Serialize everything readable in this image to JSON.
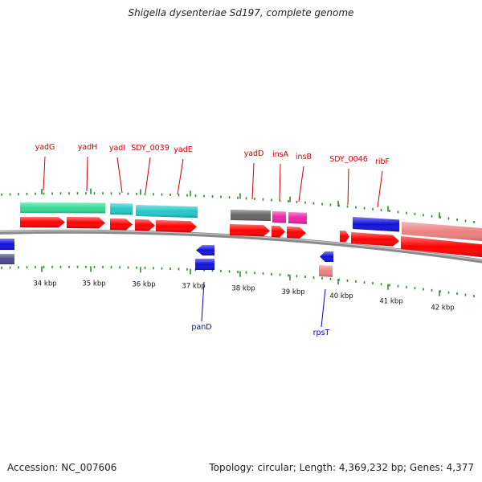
{
  "title": "Shigella dysenteriae Sd197, complete genome",
  "footer": {
    "accession": "Accession: NC_007606",
    "summary": "Topology: circular; Length: 4,369,232 bp; Genes: 4,377"
  },
  "colors": {
    "label_red": "#cc0000",
    "label_blue": "#0000cc",
    "backbone": "#8a8a8a",
    "tick": "#2e8b2e",
    "cds_red": "#ff0000",
    "green": "#33dd99",
    "cyan": "#22c8c8",
    "gray": "#666666",
    "magenta": "#ee22aa",
    "blue": "#1010dd",
    "salmon": "#ee8080",
    "navy": "#4a4a88"
  },
  "scale": {
    "unit": "kbp",
    "ticks": [
      {
        "label": "34 kbp"
      },
      {
        "label": "35 kbp"
      },
      {
        "label": "36 kbp"
      },
      {
        "label": "37 kbp"
      },
      {
        "label": "38 kbp"
      },
      {
        "label": "39 kbp"
      },
      {
        "label": "40 kbp"
      },
      {
        "label": "41 kbp"
      },
      {
        "label": "42 kbp"
      }
    ]
  },
  "genes_forward": [
    {
      "name": "yadG"
    },
    {
      "name": "yadH"
    },
    {
      "name": "yadI"
    },
    {
      "name": "SDY_0039"
    },
    {
      "name": "yadE"
    },
    {
      "name": "yadD"
    },
    {
      "name": "insA"
    },
    {
      "name": "insB"
    },
    {
      "name": "SDY_0046"
    },
    {
      "name": "ribF"
    }
  ],
  "genes_reverse": [
    {
      "name": "panD"
    },
    {
      "name": "rpsT"
    }
  ]
}
